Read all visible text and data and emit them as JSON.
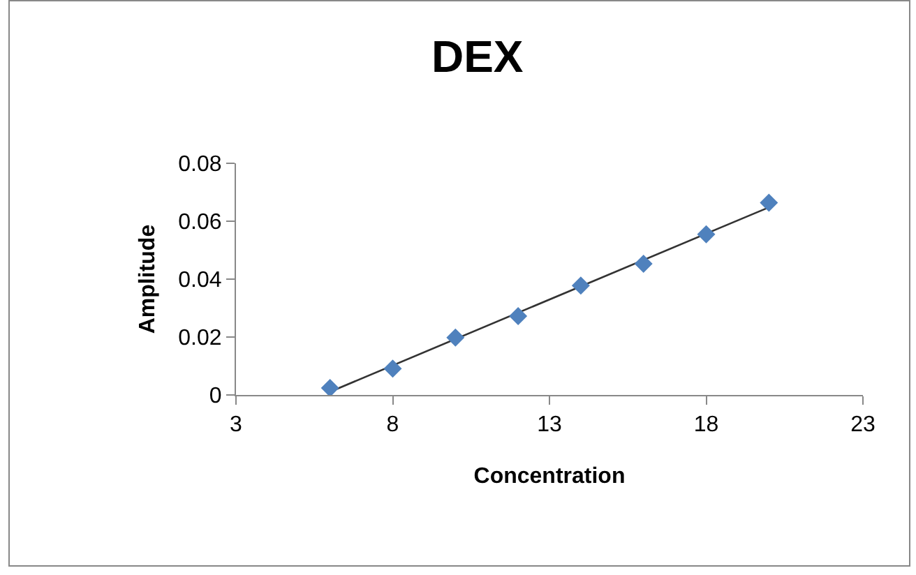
{
  "chart_data": {
    "type": "scatter",
    "title": "DEX",
    "xlabel": "Concentration",
    "ylabel": "Amplitude",
    "xlim": [
      3,
      23
    ],
    "xticks": [
      3,
      8,
      13,
      18,
      23
    ],
    "ylim": [
      0,
      0.08
    ],
    "yticks": [
      0,
      0.02,
      0.04,
      0.06,
      0.08
    ],
    "grid": false,
    "series": [
      {
        "color": "#4f81bd",
        "marker": "diamond",
        "x": [
          6,
          8,
          10,
          12,
          14,
          16,
          18,
          20
        ],
        "values": [
          0.0024,
          0.0091,
          0.0198,
          0.0272,
          0.0378,
          0.0453,
          0.0555,
          0.0664
        ]
      },
      {
        "type": "line",
        "marker": "none",
        "color": "#333333",
        "x": [
          6,
          20
        ],
        "values": [
          0.0011,
          0.0648
        ]
      }
    ]
  }
}
